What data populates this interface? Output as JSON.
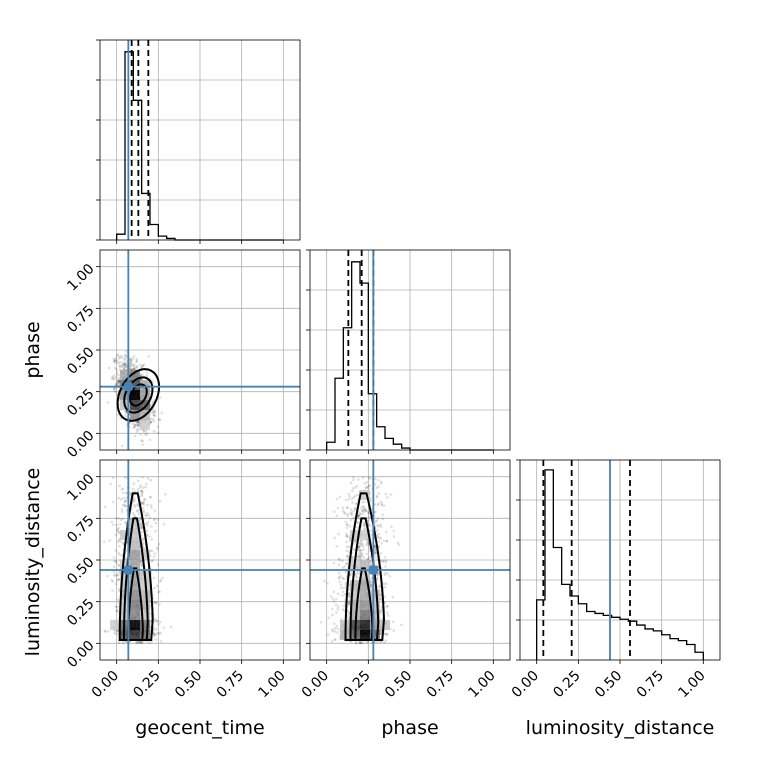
{
  "chart_data": {
    "type": "corner",
    "parameters": [
      {
        "name": "geocent_time",
        "label": "geocent_time",
        "range": [
          -0.1,
          1.1
        ]
      },
      {
        "name": "phase",
        "label": "phase",
        "range": [
          -0.1,
          1.1
        ]
      },
      {
        "name": "luminosity_distance",
        "label": "luminosity_distance",
        "range": [
          -0.1,
          1.1
        ]
      }
    ],
    "ticks": [
      0.0,
      0.25,
      0.5,
      0.75,
      1.0
    ],
    "tick_labels": [
      "0.00",
      "0.25",
      "0.50",
      "0.75",
      "1.00"
    ],
    "truths": {
      "geocent_time": 0.07,
      "phase": 0.28,
      "luminosity_distance": 0.44
    },
    "quantiles": {
      "geocent_time": [
        0.09,
        0.13,
        0.19
      ],
      "phase": [
        0.13,
        0.21,
        0.28
      ],
      "luminosity_distance": [
        0.04,
        0.21,
        0.56
      ]
    },
    "histograms": {
      "geocent_time": {
        "edges": [
          0.0,
          0.05,
          0.1,
          0.15,
          0.2,
          0.25,
          0.3,
          0.35,
          0.4,
          1.0
        ],
        "counts": [
          0.03,
          0.97,
          0.72,
          0.24,
          0.08,
          0.02,
          0.008,
          0.0,
          0.0
        ]
      },
      "phase": {
        "edges": [
          0.0,
          0.05,
          0.1,
          0.15,
          0.2,
          0.25,
          0.3,
          0.35,
          0.4,
          0.45,
          0.5,
          0.55,
          1.0
        ],
        "counts": [
          0.04,
          0.37,
          0.63,
          0.97,
          0.86,
          0.29,
          0.12,
          0.06,
          0.03,
          0.01,
          0.0,
          0.0
        ]
      },
      "luminosity_distance": {
        "edges": [
          0.0,
          0.05,
          0.1,
          0.15,
          0.2,
          0.25,
          0.3,
          0.35,
          0.4,
          0.45,
          0.5,
          0.55,
          0.6,
          0.65,
          0.7,
          0.75,
          0.8,
          0.85,
          0.9,
          0.95,
          1.0
        ],
        "counts": [
          0.31,
          0.98,
          0.58,
          0.39,
          0.33,
          0.29,
          0.25,
          0.24,
          0.23,
          0.22,
          0.21,
          0.2,
          0.18,
          0.16,
          0.15,
          0.13,
          0.11,
          0.1,
          0.08,
          0.04
        ]
      }
    },
    "grid": true
  }
}
